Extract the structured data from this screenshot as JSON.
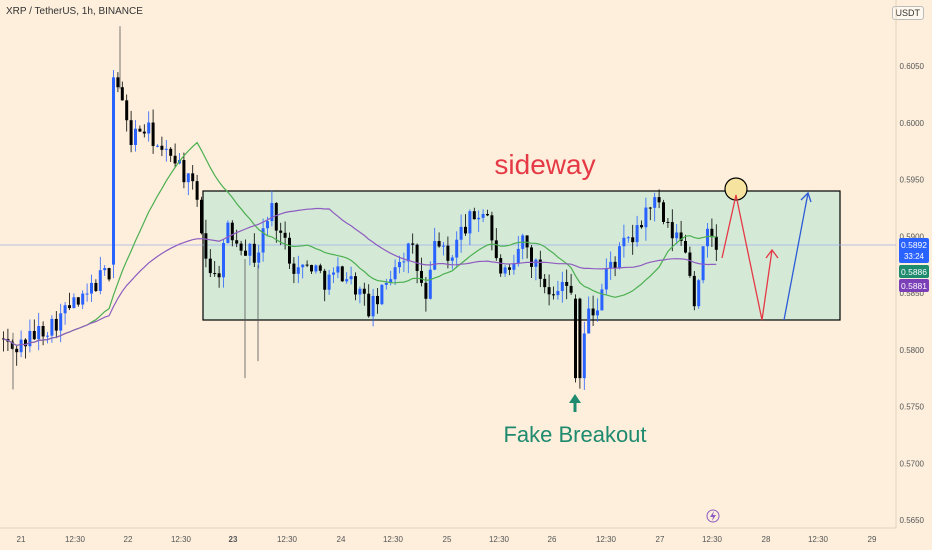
{
  "header": {
    "title": "XRP / TetherUS, 1h, BINANCE",
    "unit": "USDT"
  },
  "annotations": {
    "sideway": "sideway",
    "fake_breakout": "Fake Breakout"
  },
  "price_labels": {
    "last": "0.5892",
    "countdown": "33:24",
    "ma_green": "0.5886",
    "ma_purple": "0.5881"
  },
  "colors": {
    "background": "#fdefdc",
    "bull": "#2962ff",
    "bear": "#000000",
    "ma_green": "#4caf50",
    "ma_purple": "#8e5cc0",
    "range_fill": "#d4ead7",
    "sideway_text": "#e53945",
    "fake_text": "#1e8a6e",
    "arrow_red": "#e53945",
    "arrow_blue": "#2d5bd6",
    "circle_fill": "#f7e3a0"
  },
  "chart_data": {
    "type": "candlestick",
    "y_ticks": [
      "0.6050",
      "0.6000",
      "0.5950",
      "0.5900",
      "0.5850",
      "0.5800",
      "0.5750",
      "0.5700",
      "0.5650"
    ],
    "ylim": [
      0.5645,
      0.6085
    ],
    "x_ticks": [
      "21",
      "12:30",
      "22",
      "12:30",
      "23",
      "12:30",
      "24",
      "12:30",
      "25",
      "12:30",
      "26",
      "12:30",
      "27",
      "12:30",
      "28",
      "12:30",
      "29"
    ],
    "range_box": {
      "top": 0.5938,
      "bottom": 0.5824
    },
    "fake_breakout_low": 0.5772,
    "current_price": 0.5892
  }
}
